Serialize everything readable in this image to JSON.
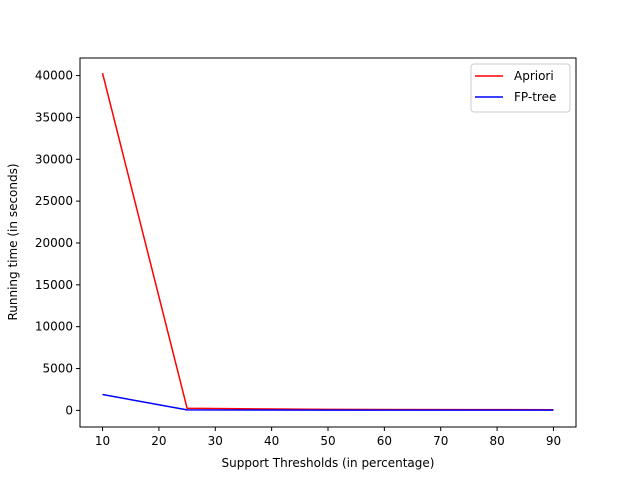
{
  "chart_data": {
    "type": "line",
    "title": "",
    "xlabel": "Support Thresholds (in percentage)",
    "ylabel": "Running time (in seconds)",
    "xlim": [
      6,
      94
    ],
    "ylim": [
      -1985,
      42100
    ],
    "xticks": [
      10,
      20,
      30,
      40,
      50,
      60,
      70,
      80,
      90
    ],
    "yticks": [
      0,
      5000,
      10000,
      15000,
      20000,
      25000,
      30000,
      35000,
      40000
    ],
    "grid": false,
    "legend_position": "top-right",
    "series": [
      {
        "name": "Apriori",
        "color": "#ff0000",
        "x": [
          10,
          25,
          50,
          75,
          90
        ],
        "y": [
          40300,
          250,
          120,
          90,
          80
        ]
      },
      {
        "name": "FP-tree",
        "color": "#0000ff",
        "x": [
          10,
          25,
          50,
          75,
          90
        ],
        "y": [
          1900,
          60,
          40,
          30,
          30
        ]
      }
    ]
  }
}
